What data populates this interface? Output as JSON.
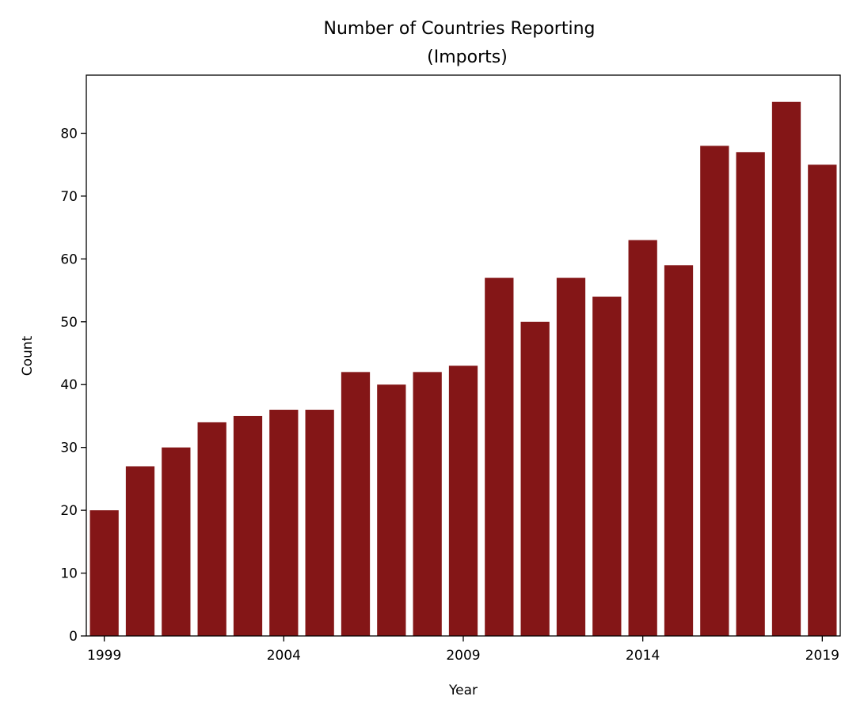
{
  "chart_data": {
    "type": "bar",
    "title": "Number of Countries Reporting\n(Imports)",
    "title_lines": [
      "Number of Countries Reporting",
      "(Imports)"
    ],
    "xlabel": "Year",
    "ylabel": "Count",
    "categories": [
      1999,
      2000,
      2001,
      2002,
      2003,
      2004,
      2005,
      2006,
      2007,
      2008,
      2009,
      2010,
      2011,
      2012,
      2013,
      2014,
      2015,
      2016,
      2017,
      2018,
      2019
    ],
    "values": [
      20,
      27,
      30,
      34,
      35,
      36,
      36,
      42,
      40,
      42,
      43,
      57,
      50,
      57,
      54,
      63,
      59,
      78,
      77,
      85,
      75
    ],
    "x_tick_labels": [
      "1999",
      "2004",
      "2009",
      "2014",
      "2019"
    ],
    "y_ticks": [
      0,
      10,
      20,
      30,
      40,
      50,
      60,
      70,
      80
    ],
    "ylim": [
      0,
      89.25
    ],
    "grid": false,
    "bar_color": "#841617"
  }
}
